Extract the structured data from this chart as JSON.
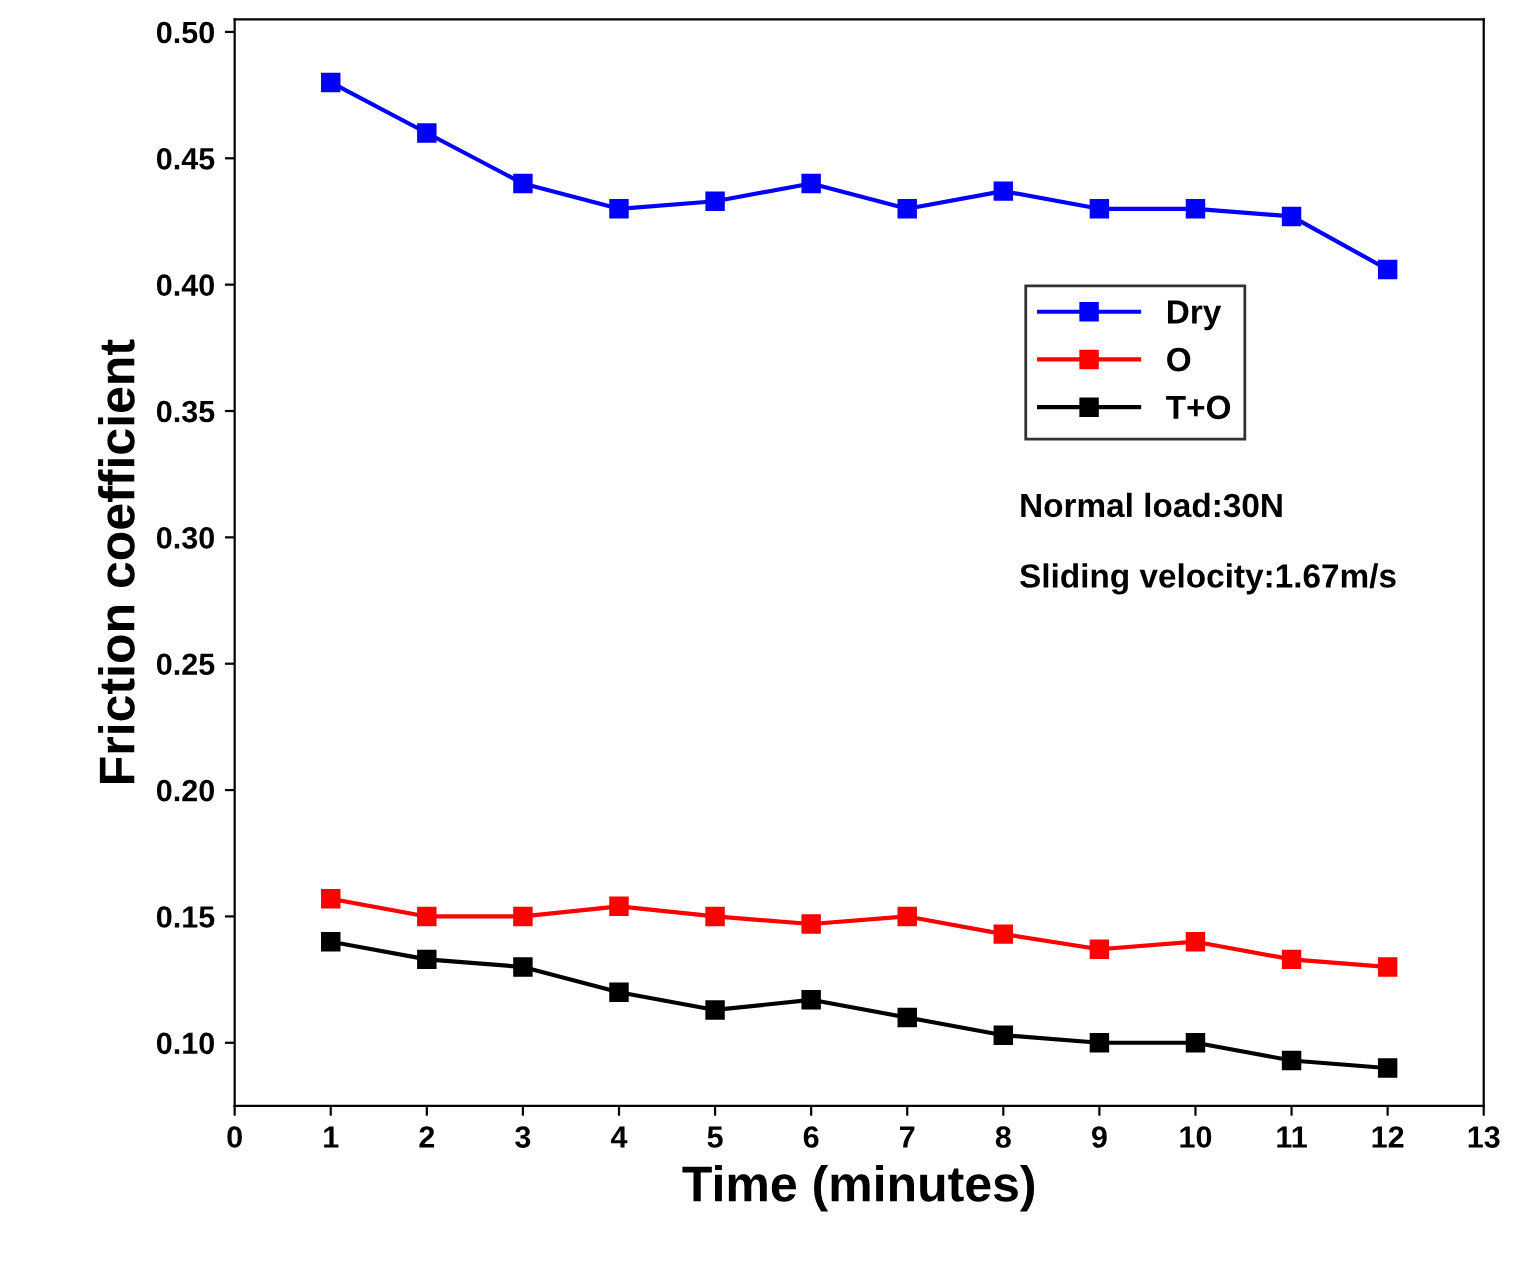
{
  "chart_data": {
    "type": "line",
    "xlabel": "Time (minutes)",
    "ylabel": "Friction coefficient",
    "x": [
      1,
      2,
      3,
      4,
      5,
      6,
      7,
      8,
      9,
      10,
      11,
      12
    ],
    "series": [
      {
        "name": "Dry",
        "color": "#0000ff",
        "values": [
          0.48,
          0.46,
          0.44,
          0.43,
          0.433,
          0.44,
          0.43,
          0.437,
          0.43,
          0.43,
          0.427,
          0.406
        ]
      },
      {
        "name": "O",
        "color": "#ff0000",
        "values": [
          0.157,
          0.15,
          0.15,
          0.154,
          0.15,
          0.147,
          0.15,
          0.143,
          0.137,
          0.14,
          0.133,
          0.13
        ]
      },
      {
        "name": "T+O",
        "color": "#000000",
        "values": [
          0.14,
          0.133,
          0.13,
          0.12,
          0.113,
          0.117,
          0.11,
          0.103,
          0.1,
          0.1,
          0.093,
          0.09
        ]
      }
    ],
    "xlim": [
      0,
      13
    ],
    "xticks": [
      0,
      1,
      2,
      3,
      4,
      5,
      6,
      7,
      8,
      9,
      10,
      11,
      12,
      13
    ],
    "ylim": [
      0.075,
      0.505
    ],
    "yticks": [
      {
        "value": 0.1,
        "label": "0.10"
      },
      0.15,
      {
        "value": 0.2,
        "label": "0.20"
      },
      0.25,
      {
        "value": 0.3,
        "label": "0.30"
      },
      0.35,
      {
        "value": 0.4,
        "label": "0.40"
      },
      0.45,
      {
        "value": 0.5,
        "label": "0.50"
      }
    ],
    "annotations": [
      "Normal load:30N",
      "Sliding velocity:1.67m/s"
    ],
    "legend": "right",
    "marker": "square",
    "line_style": "solid",
    "grid": false
  }
}
